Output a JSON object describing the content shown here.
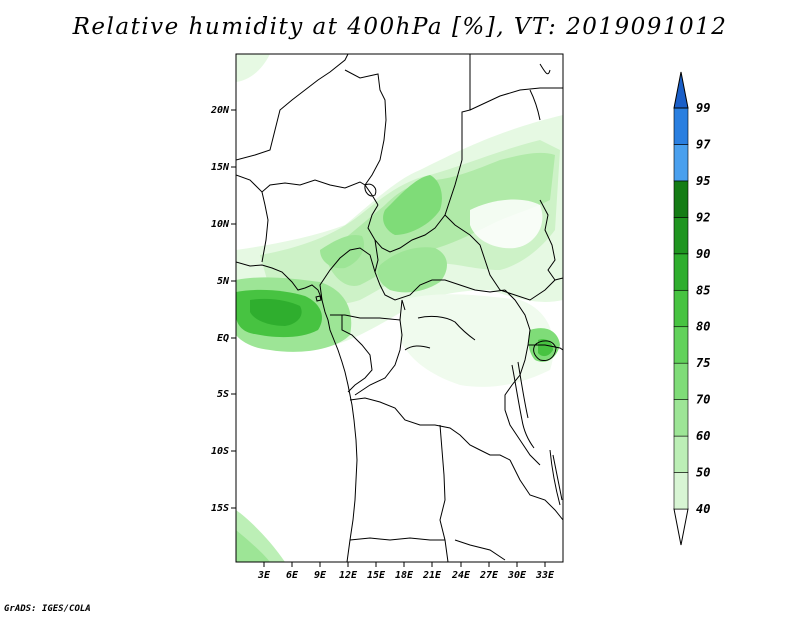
{
  "title": "Relative humidity at 400hPa [%], VT: 2019091012",
  "credit": "GrADS: IGES/COLA",
  "map": {
    "lat_labels": [
      "20N",
      "15N",
      "10N",
      "5N",
      "EQ",
      "5S",
      "10S",
      "15S"
    ],
    "lon_labels": [
      "3E",
      "6E",
      "9E",
      "12E",
      "15E",
      "18E",
      "21E",
      "24E",
      "27E",
      "30E",
      "33E"
    ]
  },
  "colorbar": {
    "levels": [
      "40",
      "50",
      "60",
      "70",
      "75",
      "80",
      "85",
      "90",
      "92",
      "95",
      "97",
      "99"
    ],
    "colors": [
      "#eefbec",
      "#d8f5d4",
      "#bcefb6",
      "#9de596",
      "#7fdc78",
      "#62d25b",
      "#47c341",
      "#2fae2e",
      "#1f9520",
      "#147c15",
      "#4aa0ee",
      "#2a7fe0",
      "#1a5fc8"
    ]
  }
}
